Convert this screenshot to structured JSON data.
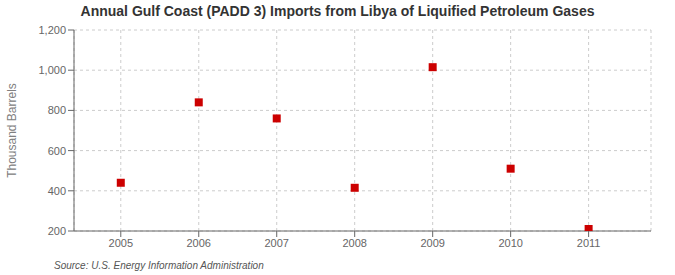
{
  "chart_data": {
    "type": "scatter",
    "title": "Annual Gulf Coast (PADD 3) Imports from Libya of Liquified Petroleum Gases",
    "y_label": "Thousand Barrels",
    "annotations": [
      "Source: U.S. Energy Information Administration"
    ],
    "x": [
      2005,
      2006,
      2007,
      2008,
      2009,
      2010,
      2011
    ],
    "values": [
      440,
      840,
      760,
      415,
      1015,
      510,
      210
    ],
    "color": "#cc0000",
    "marker": "square",
    "xlim": [
      2004.4,
      2011.8
    ],
    "xticks": [
      2005,
      2006,
      2007,
      2008,
      2009,
      2010,
      2011
    ],
    "ylim": [
      200,
      1200
    ],
    "yticks": [
      200,
      400,
      600,
      800,
      {
        "value": 1000,
        "label": "1,000"
      },
      {
        "value": 1200,
        "label": "1,200"
      }
    ],
    "grid": true
  }
}
